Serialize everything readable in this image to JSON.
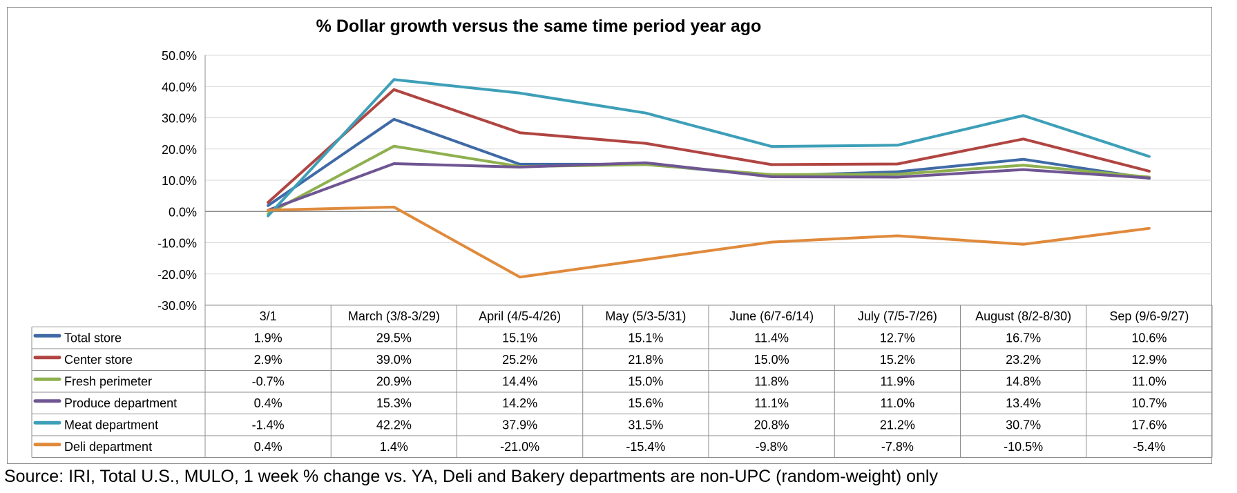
{
  "chart_data": {
    "type": "line",
    "title": "% Dollar growth versus the same time period year ago",
    "xlabel": "",
    "ylabel": "",
    "ylim": [
      -30,
      50
    ],
    "y_ticks": [
      50,
      40,
      30,
      20,
      10,
      0,
      -10,
      -20,
      -30
    ],
    "y_tick_labels": [
      "50.0%",
      "40.0%",
      "30.0%",
      "20.0%",
      "10.0%",
      "0.0%",
      "-10.0%",
      "-20.0%",
      "-30.0%"
    ],
    "grid": true,
    "legend": "data-table",
    "categories": [
      "3/1",
      "March (3/8-3/29)",
      "April (4/5-4/26)",
      "May (5/3-5/31)",
      "June (6/7-6/14)",
      "July (7/5-7/26)",
      "August (8/2-8/30)",
      "Sep (9/6-9/27)"
    ],
    "series": [
      {
        "name": "Total store",
        "color": "#3f6aa6",
        "values": [
          1.9,
          29.5,
          15.1,
          15.1,
          11.4,
          12.7,
          16.7,
          10.6
        ],
        "labels": [
          "1.9%",
          "29.5%",
          "15.1%",
          "15.1%",
          "11.4%",
          "12.7%",
          "16.7%",
          "10.6%"
        ]
      },
      {
        "name": "Center store",
        "color": "#b04542",
        "values": [
          2.9,
          39.0,
          25.2,
          21.8,
          15.0,
          15.2,
          23.2,
          12.9
        ],
        "labels": [
          "2.9%",
          "39.0%",
          "25.2%",
          "21.8%",
          "15.0%",
          "15.2%",
          "23.2%",
          "12.9%"
        ]
      },
      {
        "name": "Fresh perimeter",
        "color": "#8fb04f",
        "values": [
          -0.7,
          20.9,
          14.4,
          15.0,
          11.8,
          11.9,
          14.8,
          11.0
        ],
        "labels": [
          "-0.7%",
          "20.9%",
          "14.4%",
          "15.0%",
          "11.8%",
          "11.9%",
          "14.8%",
          "11.0%"
        ]
      },
      {
        "name": "Produce department",
        "color": "#6f5592",
        "values": [
          0.4,
          15.3,
          14.2,
          15.6,
          11.1,
          11.0,
          13.4,
          10.7
        ],
        "labels": [
          "0.4%",
          "15.3%",
          "14.2%",
          "15.6%",
          "11.1%",
          "11.0%",
          "13.4%",
          "10.7%"
        ]
      },
      {
        "name": "Meat department",
        "color": "#3d9fb8",
        "values": [
          -1.4,
          42.2,
          37.9,
          31.5,
          20.8,
          21.2,
          30.7,
          17.6
        ],
        "labels": [
          "-1.4%",
          "42.2%",
          "37.9%",
          "31.5%",
          "20.8%",
          "21.2%",
          "30.7%",
          "17.6%"
        ]
      },
      {
        "name": "Deli department",
        "color": "#e08a3c",
        "values": [
          0.4,
          1.4,
          -21.0,
          -15.4,
          -9.8,
          -7.8,
          -10.5,
          -5.4
        ],
        "labels": [
          "0.4%",
          "1.4%",
          "-21.0%",
          "-15.4%",
          "-9.8%",
          "-7.8%",
          "-10.5%",
          "-5.4%"
        ]
      }
    ]
  },
  "source_note": "Source: IRI, Total U.S., MULO, 1 week % change vs. YA, Deli and Bakery departments are non-UPC (random-weight) only"
}
